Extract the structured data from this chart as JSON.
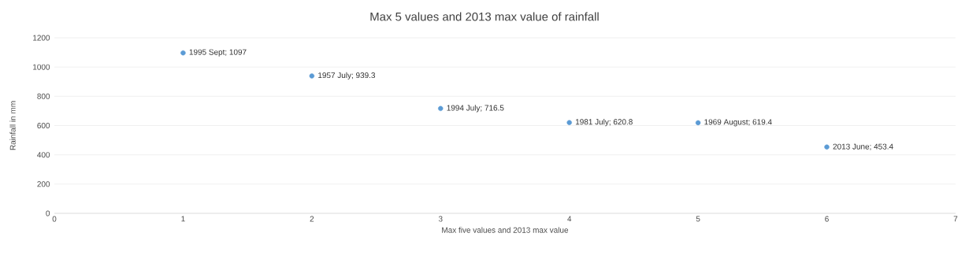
{
  "chart_data": {
    "type": "scatter",
    "title": "Max 5 values and 2013 max value of rainfall",
    "xlabel": "Max five values and 2013 max value",
    "ylabel": "Rainfall in mm",
    "x": [
      1,
      2,
      3,
      4,
      5,
      6
    ],
    "series": [
      {
        "color": "#5b9bd5",
        "values": [
          1097,
          939.3,
          716.5,
          620.8,
          619.4,
          453.4
        ]
      }
    ],
    "xlim": [
      0,
      7
    ],
    "xticks": [
      0,
      1,
      2,
      3,
      4,
      5,
      6,
      7
    ],
    "ylim": [
      0,
      1200
    ],
    "yticks": [
      0,
      200,
      400,
      600,
      800,
      1000,
      1200
    ],
    "grid": "y",
    "marker": "circle",
    "annotations": [
      {
        "text": "1995 Sept; 1097",
        "x": 1,
        "y": 1097
      },
      {
        "text": "1957 July; 939.3",
        "x": 2,
        "y": 939.3
      },
      {
        "text": "1994 July; 716.5",
        "x": 3,
        "y": 716.5
      },
      {
        "text": "1981 July; 620.8",
        "x": 4,
        "y": 620.8
      },
      {
        "text": "1969 August; 619.4",
        "x": 5,
        "y": 619.4
      },
      {
        "text": "2013 June; 453.4",
        "x": 6,
        "y": 453.4
      }
    ]
  }
}
